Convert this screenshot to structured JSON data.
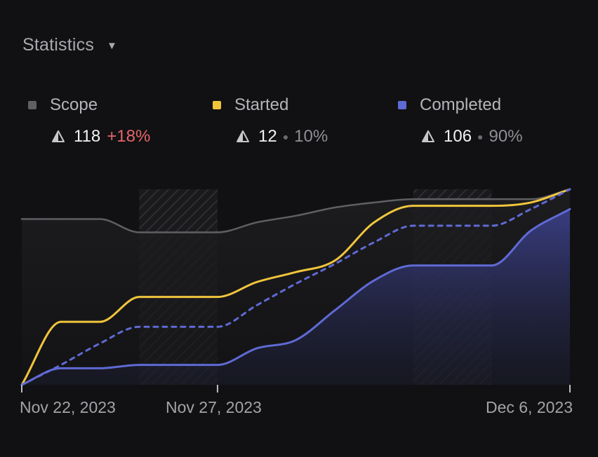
{
  "header": {
    "title": "Statistics",
    "caret_icon": "caret-down-icon"
  },
  "legend": [
    {
      "name": "Scope",
      "color": "#5f5f64",
      "icon": "delta-icon",
      "value": "118",
      "change": "+18%",
      "change_color": "#e5656a"
    },
    {
      "name": "Started",
      "color": "#f0c53c",
      "icon": "delta-icon",
      "value": "12",
      "pct": "10%"
    },
    {
      "name": "Completed",
      "color": "#5f6ad4",
      "icon": "delta-icon",
      "value": "106",
      "pct": "90%"
    }
  ],
  "chart_data": {
    "type": "line",
    "x_ticks": [
      "Nov 22, 2023",
      "Nov 27, 2023",
      "Dec 6, 2023"
    ],
    "x": [
      "Nov 22",
      "Nov 23",
      "Nov 24",
      "Nov 25",
      "Nov 26",
      "Nov 27",
      "Nov 28",
      "Nov 29",
      "Nov 30",
      "Dec 1",
      "Dec 2",
      "Dec 3",
      "Dec 4",
      "Dec 5",
      "Dec 6"
    ],
    "ylim": [
      0,
      118
    ],
    "weekend_shading": [
      [
        "Nov 25",
        "Nov 27"
      ],
      [
        "Dec 2",
        "Dec 4"
      ]
    ],
    "grid": false,
    "legend_position": "top",
    "series": [
      {
        "name": "Scope",
        "color": "#5f5f64",
        "style": "solid",
        "values": [
          100,
          100,
          100,
          92,
          92,
          92,
          98,
          102,
          107,
          110,
          112,
          112,
          112,
          112,
          118
        ]
      },
      {
        "name": "Started",
        "color": "#f0c53c",
        "style": "solid",
        "values": [
          0,
          38,
          38,
          53,
          53,
          53,
          62,
          68,
          75,
          98,
          108,
          108,
          108,
          110,
          118
        ]
      },
      {
        "name": "",
        "color": "#5f6ad4",
        "style": "dashed",
        "values": [
          0,
          12,
          25,
          35,
          35,
          35,
          48,
          61,
          73,
          86,
          96,
          96,
          96,
          106,
          118
        ]
      },
      {
        "name": "Completed",
        "color": "#5f6ad4",
        "style": "solid",
        "fill": true,
        "values": [
          0,
          10,
          10,
          12,
          12,
          12,
          22,
          27,
          45,
          63,
          72,
          72,
          72,
          93,
          106
        ]
      }
    ]
  }
}
